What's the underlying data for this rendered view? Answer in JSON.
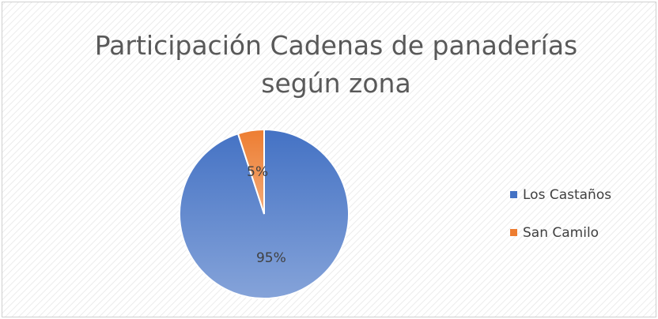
{
  "chart_data": {
    "type": "pie",
    "title": "Participación Cadenas de panaderías según zona",
    "categories": [
      "Los Castaños",
      "San Camilo"
    ],
    "values": [
      95,
      5
    ],
    "value_labels": [
      "95%",
      "5%"
    ],
    "colors": [
      "#4472c4",
      "#ed7d31"
    ],
    "legend": "right"
  }
}
